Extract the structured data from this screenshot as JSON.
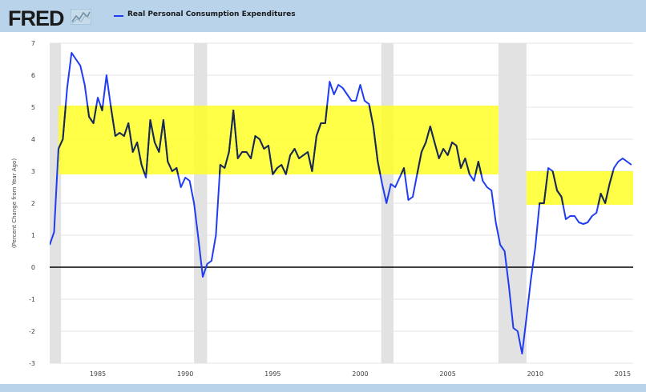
{
  "header": {
    "logo_text": "FRED",
    "legend_label": "Real Personal Consumption Expenditures"
  },
  "colors": {
    "series": "#1f3cf0",
    "overlap": "#1a2a4a",
    "band": "#ffff1f",
    "recession": "#e2e2e2",
    "zero_line": "#000000"
  },
  "chart_data": {
    "type": "line",
    "title": "",
    "xlabel": "",
    "ylabel": "(Percent Change from Year Ago)",
    "xlim": [
      1982.25,
      2015.6
    ],
    "ylim": [
      -3,
      7
    ],
    "x_ticks": [
      1985,
      1990,
      1995,
      2000,
      2005,
      2010,
      2015
    ],
    "y_ticks": [
      -3,
      -2,
      -1,
      0,
      1,
      2,
      3,
      4,
      5,
      6,
      7
    ],
    "grid": "horizontal",
    "legend_position": "top-left",
    "reference_line": 0,
    "recessions": [
      {
        "start": 1981.5,
        "end": 1982.9
      },
      {
        "start": 1990.5,
        "end": 1991.25
      },
      {
        "start": 2001.2,
        "end": 2001.9
      },
      {
        "start": 2007.9,
        "end": 2009.5
      }
    ],
    "bands": [
      {
        "x_start": 1982.75,
        "x_end": 2007.9,
        "y_low": 2.9,
        "y_high": 5.05
      },
      {
        "x_start": 2009.5,
        "x_end": 2015.6,
        "y_low": 1.95,
        "y_high": 3.0
      }
    ],
    "series": [
      {
        "x": [
          1982.25,
          1982.5,
          1982.75,
          1983.0,
          1983.25,
          1983.5,
          1983.75,
          1984.0,
          1984.25,
          1984.5,
          1984.75,
          1985.0,
          1985.25,
          1985.5,
          1985.75,
          1986.0,
          1986.25,
          1986.5,
          1986.75,
          1987.0,
          1987.25,
          1987.5,
          1987.75,
          1988.0,
          1988.25,
          1988.5,
          1988.75,
          1989.0,
          1989.25,
          1989.5,
          1989.75,
          1990.0,
          1990.25,
          1990.5,
          1990.75,
          1991.0,
          1991.25,
          1991.5,
          1991.75,
          1992.0,
          1992.25,
          1992.5,
          1992.75,
          1993.0,
          1993.25,
          1993.5,
          1993.75,
          1994.0,
          1994.25,
          1994.5,
          1994.75,
          1995.0,
          1995.25,
          1995.5,
          1995.75,
          1996.0,
          1996.25,
          1996.5,
          1996.75,
          1997.0,
          1997.25,
          1997.5,
          1997.75,
          1998.0,
          1998.25,
          1998.5,
          1998.75,
          1999.0,
          1999.25,
          1999.5,
          1999.75,
          2000.0,
          2000.25,
          2000.5,
          2000.75,
          2001.0,
          2001.25,
          2001.5,
          2001.75,
          2002.0,
          2002.25,
          2002.5,
          2002.75,
          2003.0,
          2003.25,
          2003.5,
          2003.75,
          2004.0,
          2004.25,
          2004.5,
          2004.75,
          2005.0,
          2005.25,
          2005.5,
          2005.75,
          2006.0,
          2006.25,
          2006.5,
          2006.75,
          2007.0,
          2007.25,
          2007.5,
          2007.75,
          2008.0,
          2008.25,
          2008.5,
          2008.75,
          2009.0,
          2009.25,
          2009.5,
          2009.75,
          2010.0,
          2010.25,
          2010.5,
          2010.75,
          2011.0,
          2011.25,
          2011.5,
          2011.75,
          2012.0,
          2012.25,
          2012.5,
          2012.75,
          2013.0,
          2013.25,
          2013.5,
          2013.75,
          2014.0,
          2014.25,
          2014.5,
          2014.75,
          2015.0,
          2015.25,
          2015.5
        ],
        "values": [
          0.7,
          1.1,
          3.7,
          4.0,
          5.6,
          6.7,
          6.5,
          6.3,
          5.7,
          4.7,
          4.5,
          5.3,
          4.9,
          6.0,
          5.0,
          4.1,
          4.2,
          4.1,
          4.5,
          3.6,
          3.9,
          3.2,
          2.8,
          4.6,
          3.9,
          3.6,
          4.6,
          3.3,
          3.0,
          3.1,
          2.5,
          2.8,
          2.7,
          2.0,
          0.9,
          -0.3,
          0.1,
          0.2,
          1.0,
          3.2,
          3.1,
          3.6,
          4.9,
          3.4,
          3.6,
          3.6,
          3.4,
          4.1,
          4.0,
          3.7,
          3.8,
          2.9,
          3.1,
          3.2,
          2.9,
          3.5,
          3.7,
          3.4,
          3.5,
          3.6,
          3.0,
          4.1,
          4.5,
          4.5,
          5.8,
          5.4,
          5.7,
          5.6,
          5.4,
          5.2,
          5.2,
          5.7,
          5.2,
          5.1,
          4.4,
          3.3,
          2.6,
          2.0,
          2.6,
          2.5,
          2.8,
          3.1,
          2.1,
          2.2,
          2.9,
          3.6,
          3.9,
          4.4,
          3.9,
          3.4,
          3.7,
          3.5,
          3.9,
          3.8,
          3.1,
          3.4,
          2.9,
          2.7,
          3.3,
          2.7,
          2.5,
          2.4,
          1.4,
          0.7,
          0.5,
          -0.6,
          -1.9,
          -2.0,
          -2.7,
          -1.6,
          -0.4,
          0.6,
          2.0,
          2.0,
          3.1,
          3.0,
          2.4,
          2.2,
          1.5,
          1.6,
          1.6,
          1.4,
          1.35,
          1.4,
          1.6,
          1.7,
          2.3,
          2.0,
          2.6,
          3.1,
          3.3,
          3.4,
          3.3,
          3.2
        ]
      }
    ]
  }
}
